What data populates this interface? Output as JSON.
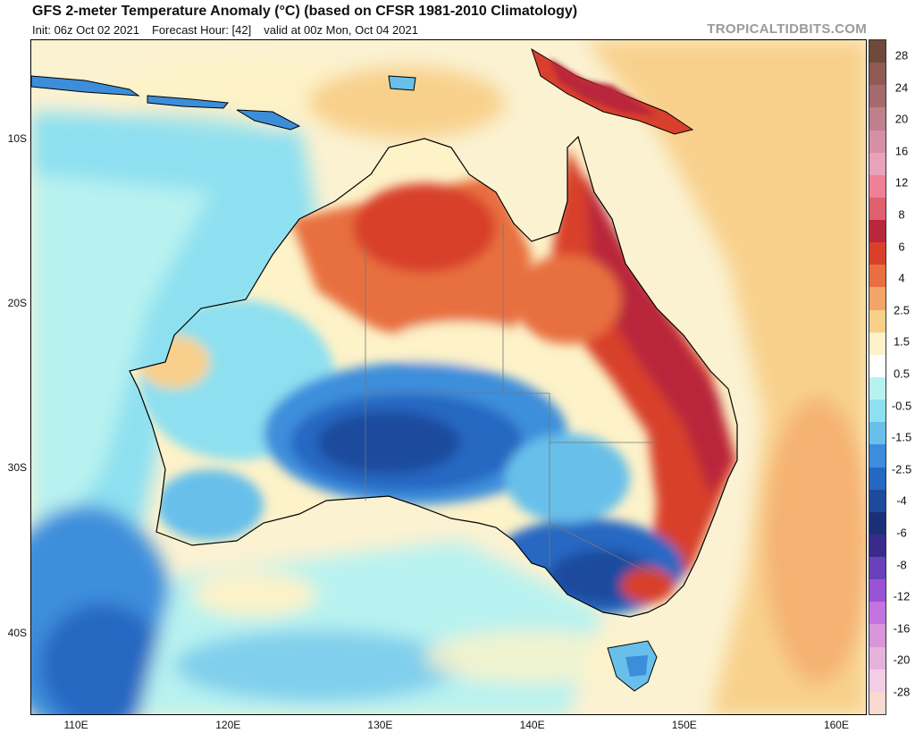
{
  "header": {
    "title": "GFS 2-meter Temperature Anomaly (°C) (based on CFSR 1981-2010 Climatology)",
    "init": "Init: 06z Oct 02 2021",
    "forecast_hour": "Forecast Hour: [42]",
    "valid": "valid at 00z Mon, Oct 04 2021",
    "watermark": "TROPICALTIDBITS.COM"
  },
  "map": {
    "region": "Australia",
    "lon_range": [
      107,
      162
    ],
    "lat_range": [
      -45,
      -4
    ],
    "lat_ticks": [
      {
        "label": "10S",
        "value": -10
      },
      {
        "label": "20S",
        "value": -20
      },
      {
        "label": "30S",
        "value": -30
      },
      {
        "label": "40S",
        "value": -40
      }
    ],
    "lon_ticks": [
      {
        "label": "110E",
        "value": 110
      },
      {
        "label": "120E",
        "value": 120
      },
      {
        "label": "130E",
        "value": 130
      },
      {
        "label": "140E",
        "value": 140
      },
      {
        "label": "150E",
        "value": 150
      },
      {
        "label": "160E",
        "value": 160
      }
    ],
    "anomaly_regions": [
      {
        "name": "nw-interior-warm",
        "level": 3,
        "color": "#e8703a"
      },
      {
        "name": "east-coast-warm",
        "level": 5,
        "color": "#c9362a"
      },
      {
        "name": "central-south-cold",
        "level": -4,
        "color": "#1f4ea8"
      },
      {
        "name": "southeast-cold",
        "level": -5,
        "color": "#203f8f"
      },
      {
        "name": "ocean-west-cool",
        "level": -1,
        "color": "#8fd8ee"
      }
    ]
  },
  "colorbar": {
    "labels": [
      "28",
      "24",
      "20",
      "16",
      "12",
      "8",
      "6",
      "4",
      "2.5",
      "1.5",
      "0.5",
      "-0.5",
      "-1.5",
      "-2.5",
      "-4",
      "-6",
      "-8",
      "-12",
      "-16",
      "-20",
      "-28"
    ],
    "colors": [
      "#6e4a3a",
      "#8e5a52",
      "#a56a6e",
      "#bf7f8c",
      "#d68fa6",
      "#e9a2ba",
      "#f08098",
      "#e06070",
      "#b9283a",
      "#d8402c",
      "#e87040",
      "#f3a567",
      "#f8d08c",
      "#fdf2c8",
      "#ffffff",
      "#b8f2f0",
      "#8ee0f0",
      "#68c0ea",
      "#3c8edb",
      "#2667c2",
      "#1c4b9e",
      "#1b2f78",
      "#3a2a8c",
      "#6a40bb",
      "#9a52d6",
      "#c374df",
      "#d895d9",
      "#e6b2dc",
      "#f2cee6",
      "#f7d9d0"
    ]
  }
}
